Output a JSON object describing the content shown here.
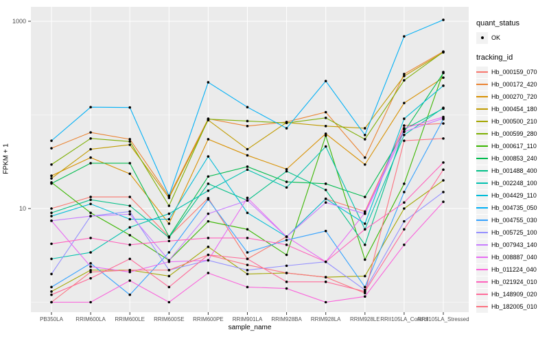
{
  "figure": {
    "y_axis": {
      "title": "FPKM + 1",
      "scale": "log10",
      "major_ticks": [
        {
          "label": "1000",
          "value": 1000
        },
        {
          "label": "10",
          "value": 10
        }
      ],
      "minor_grid_values": [
        1,
        100
      ]
    },
    "x_axis": {
      "title": "sample_name"
    },
    "legend": {
      "quant_status": {
        "title": "quant_status",
        "items": [
          {
            "label": "OK",
            "symbol": "point"
          }
        ]
      },
      "tracking_id": {
        "title": "tracking_id"
      }
    },
    "colors": {
      "panel_bg": "#EBEBEB",
      "grid": "#FFFFFF",
      "axis_text": "#4D4D4D",
      "point": "#000000",
      "legend_key_bg": "#F2F2F2"
    }
  },
  "chart_data": {
    "type": "line",
    "title": "",
    "xlabel": "sample_name",
    "ylabel": "FPKM + 1",
    "y_scale": "log10",
    "ylim": [
      0.8,
      1400
    ],
    "grid": true,
    "legend_position": "right",
    "point_marker": "black-dot",
    "categories": [
      "PB350LA",
      "RRIM600LA",
      "RRIM600LE",
      "RRIM600SE",
      "RRIM600PE",
      "RRIM901LA",
      "RRIM928BA",
      "RRIM928LA",
      "RRIM928LE",
      "RRII105LA_Control",
      "RRII105LA_Stressed"
    ],
    "series": [
      {
        "name": "Hb_000159_070",
        "color": "#F8766D",
        "values": [
          10,
          13.3,
          13.3,
          5.0,
          12.9,
          2.9,
          5.0,
          12.7,
          9.3,
          77,
          81
        ]
      },
      {
        "name": "Hb_000172_420",
        "color": "#EA8331",
        "values": [
          44,
          65,
          55,
          13.5,
          91,
          76,
          84,
          107,
          35,
          273,
          475
        ]
      },
      {
        "name": "Hb_000270_720",
        "color": "#D89000",
        "values": [
          22.4,
          35,
          23.5,
          6.9,
          55,
          37,
          26.3,
          63,
          29.5,
          134,
          250
        ]
      },
      {
        "name": "Hb_000454_180",
        "color": "#C09B00",
        "values": [
          21,
          43,
          48,
          13.0,
          88,
          43,
          83,
          76,
          72,
          260,
          465
        ]
      },
      {
        "name": "Hb_000500_210",
        "color": "#A3A500",
        "values": [
          1.3,
          2.2,
          2.2,
          1.9,
          3.9,
          2.0,
          2.05,
          1.85,
          1.9,
          10,
          20
        ]
      },
      {
        "name": "Hb_000599_280",
        "color": "#7CAE00",
        "values": [
          29.5,
          56,
          52,
          10.7,
          90,
          86,
          82,
          93,
          55,
          234,
          470
        ]
      },
      {
        "name": "Hb_000617_110",
        "color": "#39B600",
        "values": [
          19,
          9.0,
          5.2,
          2.8,
          7.3,
          6.0,
          3.2,
          60,
          2.85,
          18.4,
          287
        ]
      },
      {
        "name": "Hb_000853_240",
        "color": "#00BB4E",
        "values": [
          18.5,
          30.5,
          30.5,
          5.0,
          22,
          28,
          19.3,
          18.4,
          13.3,
          66,
          280
        ]
      },
      {
        "name": "Hb_001488_400",
        "color": "#00C087",
        "values": [
          9.0,
          12.4,
          10.7,
          4.9,
          18.4,
          12.2,
          25,
          15.8,
          4.1,
          70,
          117
        ]
      },
      {
        "name": "Hb_002248_100",
        "color": "#00C0AF",
        "values": [
          2.9,
          3.4,
          6.3,
          8.8,
          15.5,
          26,
          16.8,
          46,
          6.0,
          61,
          119
        ]
      },
      {
        "name": "Hb_004429_110",
        "color": "#00BCD8",
        "values": [
          8.3,
          11.2,
          7.7,
          7.7,
          36,
          9.0,
          5.0,
          12.7,
          6.9,
          91,
          205
        ]
      },
      {
        "name": "Hb_004735_050",
        "color": "#00B0F6",
        "values": [
          53,
          121,
          120,
          13.7,
          223,
          121,
          72,
          230,
          61,
          690,
          1035
        ]
      },
      {
        "name": "Hb_004755_030",
        "color": "#35A2FF",
        "values": [
          1.45,
          2.6,
          1.2,
          3.4,
          12.5,
          3.4,
          4.6,
          5.75,
          1.45,
          15,
          90
        ]
      },
      {
        "name": "Hb_005725_100",
        "color": "#9590FF",
        "values": [
          2.0,
          8.3,
          9.3,
          2.2,
          2.8,
          2.2,
          2.45,
          2.7,
          1.35,
          7.3,
          15
        ]
      },
      {
        "name": "Hb_007943_140",
        "color": "#C77CFF",
        "values": [
          7.4,
          8.3,
          8.7,
          2.8,
          8.8,
          12.2,
          5.0,
          11.6,
          8.8,
          66,
          92
        ]
      },
      {
        "name": "Hb_008887_040",
        "color": "#E76BF3",
        "values": [
          7.4,
          2.4,
          2.1,
          2.7,
          2.8,
          13.0,
          5.0,
          2.7,
          9.0,
          72,
          95
        ]
      },
      {
        "name": "Hb_011224_040",
        "color": "#FA62DB",
        "values": [
          1.0,
          1.0,
          1.7,
          1.0,
          2.05,
          1.45,
          1.4,
          1.0,
          1.15,
          4.1,
          11.8
        ]
      },
      {
        "name": "Hb_021924_010",
        "color": "#FF62BC",
        "values": [
          4.2,
          4.85,
          4.1,
          4.5,
          4.85,
          4.85,
          4.1,
          2.7,
          6.0,
          11.6,
          31
        ]
      },
      {
        "name": "Hb_148909_020",
        "color": "#FF6A98",
        "values": [
          1.2,
          1.8,
          2.9,
          1.45,
          3.2,
          2.9,
          1.65,
          1.65,
          1.3,
          6.0,
          26
        ]
      },
      {
        "name": "Hb_182005_010",
        "color": "#FC717F",
        "values": [
          1.0,
          2.1,
          2.2,
          2.2,
          3.2,
          2.5,
          2.05,
          1.85,
          1.25,
          53,
          56
        ]
      }
    ]
  }
}
